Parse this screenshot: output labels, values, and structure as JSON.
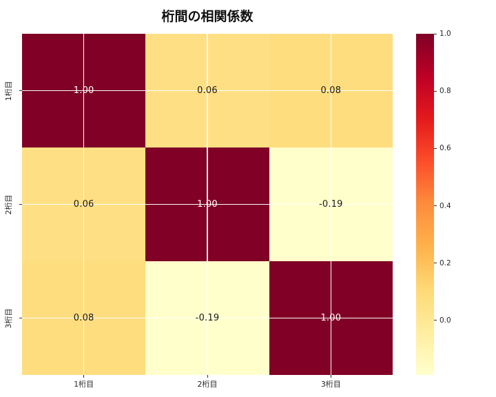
{
  "title": "桁間の相関係数",
  "chart_data": {
    "type": "heatmap",
    "title": "桁間の相関係数",
    "categories": [
      "1桁目",
      "2桁目",
      "3桁目"
    ],
    "x_tick_labels": [
      "1桁目",
      "2桁目",
      "3桁目"
    ],
    "y_tick_labels": [
      "1桁目",
      "2桁目",
      "3桁目"
    ],
    "matrix": [
      [
        1.0,
        0.06,
        0.08
      ],
      [
        0.06,
        1.0,
        -0.19
      ],
      [
        0.08,
        -0.19,
        1.0
      ]
    ],
    "cell_labels": [
      [
        "1.00",
        "0.06",
        "0.08"
      ],
      [
        "0.06",
        "1.00",
        "-0.19"
      ],
      [
        "0.08",
        "-0.19",
        "1.00"
      ]
    ],
    "vmin": -0.19,
    "vmax": 1.0,
    "colormap": "YlOrRd",
    "colormap_stops": [
      [
        0.0,
        "#ffffcc"
      ],
      [
        0.125,
        "#ffeda0"
      ],
      [
        0.25,
        "#fed976"
      ],
      [
        0.375,
        "#feb24c"
      ],
      [
        0.5,
        "#fd8d3c"
      ],
      [
        0.625,
        "#fc4e2a"
      ],
      [
        0.75,
        "#e31a1c"
      ],
      [
        0.875,
        "#bd0026"
      ],
      [
        1.0,
        "#800026"
      ]
    ],
    "colorbar_ticks": [
      {
        "value": 1.0,
        "label": "1.0"
      },
      {
        "value": 0.8,
        "label": "0.8"
      },
      {
        "value": 0.6,
        "label": "0.6"
      },
      {
        "value": 0.4,
        "label": "0.4"
      },
      {
        "value": 0.2,
        "label": "0.2"
      },
      {
        "value": 0.0,
        "label": "0.0"
      }
    ],
    "grid": true,
    "legend_position": "colorbar-right"
  },
  "colors": {
    "background": "#ffffff",
    "gridline": "#ffffff",
    "tick": "#262626",
    "annotation_dark": "#1a1a1a",
    "annotation_light": "#ffffff",
    "title_color": "#111111"
  }
}
